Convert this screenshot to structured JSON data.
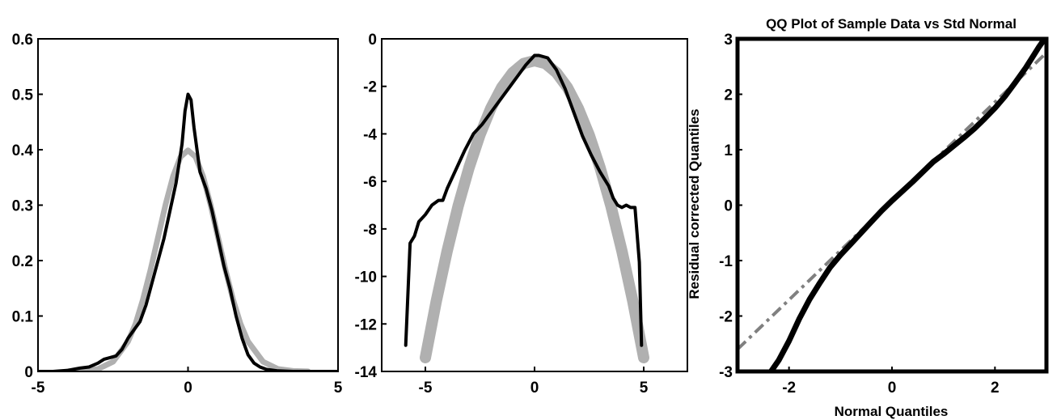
{
  "chart_data": [
    {
      "type": "line",
      "title": "",
      "xlabel": "",
      "ylabel": "",
      "xlim": [
        -5,
        5
      ],
      "ylim": [
        0,
        0.6
      ],
      "xticks": [
        -5,
        0,
        5
      ],
      "yticks": [
        0,
        0.1,
        0.2,
        0.3,
        0.4,
        0.5,
        0.6
      ],
      "grid": false,
      "colors": {
        "reference": "#b0b0b0",
        "empirical": "#000000"
      },
      "series": [
        {
          "role": "reference",
          "x": [
            -4.0,
            -3.5,
            -3.0,
            -2.5,
            -2.0,
            -1.75,
            -1.5,
            -1.25,
            -1.0,
            -0.75,
            -0.5,
            -0.25,
            0.0,
            0.25,
            0.5,
            0.75,
            1.0,
            1.25,
            1.5,
            1.75,
            2.0,
            2.5,
            3.0,
            3.5,
            4.0
          ],
          "y": [
            0.0001,
            0.0009,
            0.0044,
            0.0175,
            0.054,
            0.086,
            0.13,
            0.183,
            0.242,
            0.301,
            0.352,
            0.387,
            0.399,
            0.387,
            0.352,
            0.301,
            0.242,
            0.183,
            0.13,
            0.086,
            0.054,
            0.0175,
            0.0044,
            0.0009,
            0.0001
          ]
        },
        {
          "role": "empirical",
          "x": [
            -5.0,
            -4.5,
            -4.0,
            -3.6,
            -3.3,
            -3.0,
            -2.8,
            -2.6,
            -2.4,
            -2.2,
            -2.0,
            -1.8,
            -1.6,
            -1.4,
            -1.2,
            -1.0,
            -0.8,
            -0.6,
            -0.4,
            -0.2,
            -0.1,
            0.0,
            0.1,
            0.2,
            0.4,
            0.6,
            0.8,
            1.0,
            1.2,
            1.4,
            1.6,
            1.8,
            2.0,
            2.2,
            2.4,
            2.6,
            3.0,
            3.5,
            4.0,
            5.0
          ],
          "y": [
            0.0,
            0.0,
            0.002,
            0.006,
            0.008,
            0.015,
            0.022,
            0.025,
            0.028,
            0.04,
            0.06,
            0.075,
            0.09,
            0.12,
            0.16,
            0.2,
            0.24,
            0.29,
            0.34,
            0.41,
            0.47,
            0.5,
            0.49,
            0.44,
            0.36,
            0.33,
            0.29,
            0.24,
            0.19,
            0.15,
            0.1,
            0.06,
            0.03,
            0.015,
            0.008,
            0.004,
            0.001,
            0.0,
            0.0,
            0.0
          ]
        }
      ]
    },
    {
      "type": "line",
      "title": "",
      "xlabel": "",
      "ylabel": "",
      "xlim": [
        -7,
        7
      ],
      "ylim": [
        -14,
        0
      ],
      "xticks": [
        -5,
        0,
        5
      ],
      "yticks": [
        0,
        -2,
        -4,
        -6,
        -8,
        -10,
        -12,
        -14
      ],
      "grid": false,
      "colors": {
        "reference": "#b0b0b0",
        "empirical": "#000000"
      },
      "series": [
        {
          "role": "reference",
          "x": [
            -5.0,
            -4.5,
            -4.0,
            -3.5,
            -3.0,
            -2.5,
            -2.0,
            -1.5,
            -1.0,
            -0.5,
            0.0,
            0.5,
            1.0,
            1.5,
            2.0,
            2.5,
            3.0,
            3.5,
            4.0,
            4.5,
            5.0
          ],
          "y": [
            -13.42,
            -11.04,
            -8.92,
            -7.04,
            -5.42,
            -4.04,
            -2.92,
            -2.04,
            -1.42,
            -1.04,
            -0.92,
            -1.04,
            -1.42,
            -2.04,
            -2.92,
            -4.04,
            -5.42,
            -7.04,
            -8.92,
            -11.04,
            -13.42
          ]
        },
        {
          "role": "empirical",
          "x": [
            -5.9,
            -5.7,
            -5.5,
            -5.3,
            -5.0,
            -4.7,
            -4.4,
            -4.2,
            -4.0,
            -3.6,
            -3.2,
            -2.8,
            -2.4,
            -2.0,
            -1.6,
            -1.2,
            -0.8,
            -0.4,
            0.0,
            0.2,
            0.6,
            1.0,
            1.4,
            1.8,
            2.2,
            2.6,
            3.0,
            3.4,
            3.6,
            3.8,
            4.0,
            4.2,
            4.4,
            4.6,
            4.8,
            4.9
          ],
          "y": [
            -12.9,
            -8.6,
            -8.3,
            -7.7,
            -7.4,
            -7.0,
            -6.8,
            -6.8,
            -6.3,
            -5.5,
            -4.7,
            -4.0,
            -3.6,
            -3.1,
            -2.6,
            -2.1,
            -1.6,
            -1.1,
            -0.7,
            -0.7,
            -0.8,
            -1.3,
            -2.1,
            -3.1,
            -4.1,
            -4.9,
            -5.6,
            -6.2,
            -6.7,
            -7.0,
            -7.1,
            -7.0,
            -7.1,
            -7.1,
            -9.4,
            -12.9
          ]
        }
      ]
    },
    {
      "type": "scatter",
      "title": "QQ Plot of Sample Data vs Std Normal",
      "xlabel": "Normal Quantiles",
      "ylabel": "Residual corrected Quantiles",
      "xlim": [
        -3,
        3
      ],
      "ylim": [
        -3,
        3
      ],
      "xticks": [
        -2,
        0,
        2
      ],
      "yticks": [
        3,
        2,
        1,
        0,
        -1,
        -2,
        -3
      ],
      "grid": false,
      "colors": {
        "reference": "#808080",
        "sample": "#000000"
      },
      "reference_line": {
        "x": [
          -3.0,
          3.0
        ],
        "y": [
          -2.6,
          2.75
        ]
      },
      "series": [
        {
          "role": "sample",
          "x": [
            -2.35,
            -2.2,
            -2.0,
            -1.8,
            -1.6,
            -1.4,
            -1.2,
            -1.0,
            -0.8,
            -0.6,
            -0.4,
            -0.2,
            0.0,
            0.2,
            0.4,
            0.6,
            0.8,
            1.0,
            1.2,
            1.4,
            1.6,
            1.8,
            2.0,
            2.2,
            2.4,
            2.6,
            2.75,
            2.85,
            2.95
          ],
          "y": [
            -3.0,
            -2.8,
            -2.45,
            -2.05,
            -1.7,
            -1.4,
            -1.12,
            -0.9,
            -0.7,
            -0.5,
            -0.3,
            -0.1,
            0.08,
            0.25,
            0.42,
            0.6,
            0.78,
            0.92,
            1.07,
            1.22,
            1.38,
            1.56,
            1.75,
            1.97,
            2.22,
            2.48,
            2.7,
            2.85,
            2.98
          ]
        }
      ]
    }
  ]
}
